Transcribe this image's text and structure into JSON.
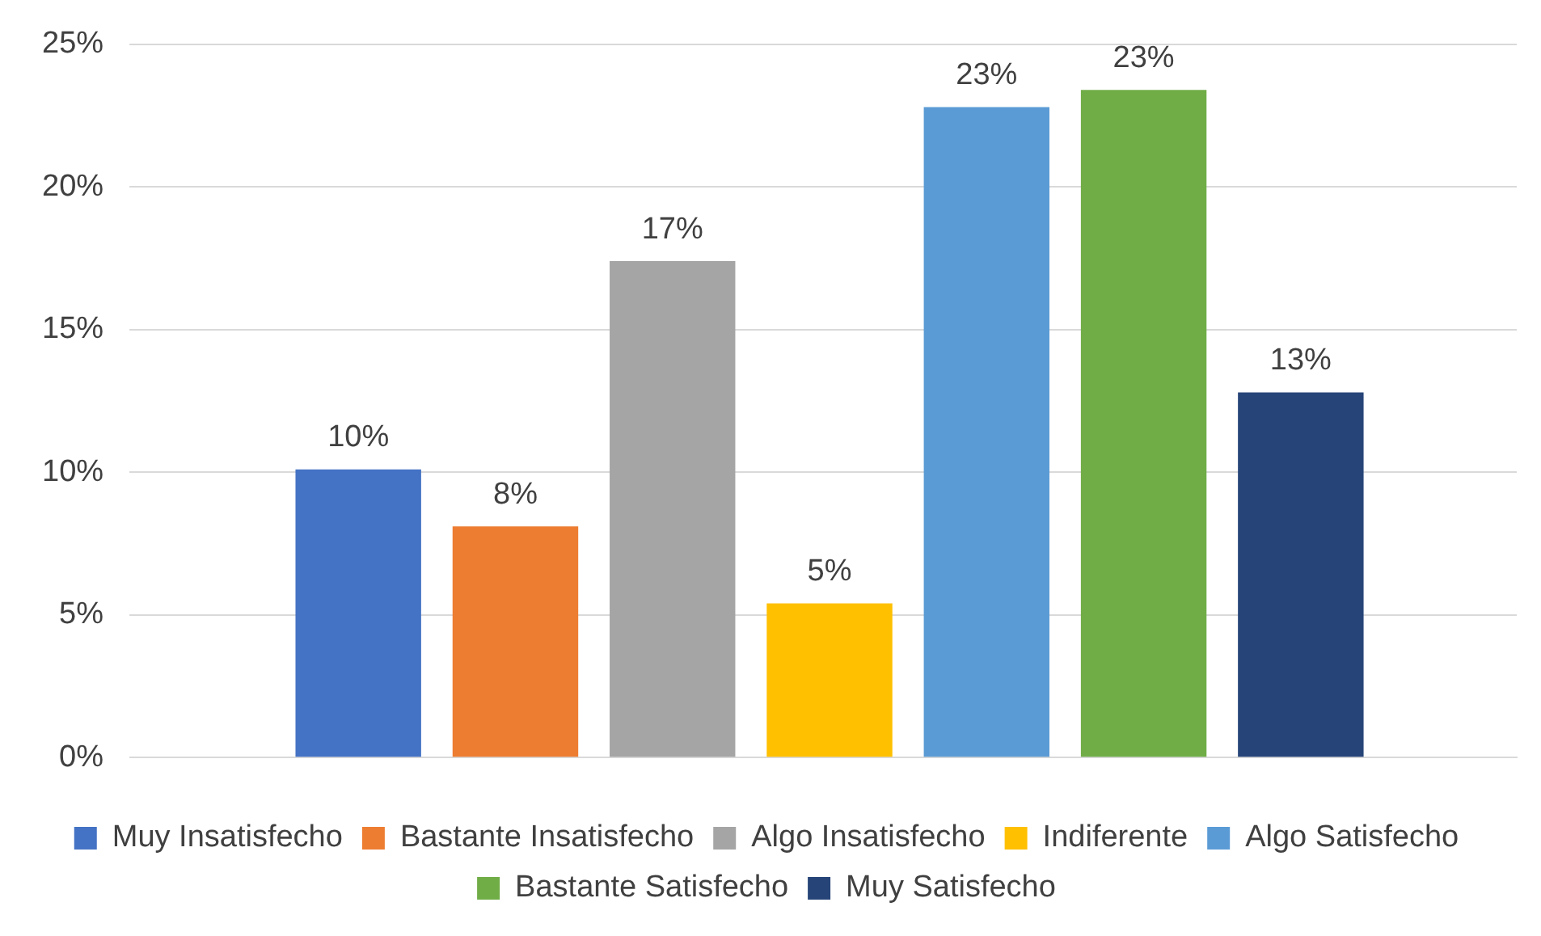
{
  "chart_data": {
    "type": "bar",
    "categories": [
      null
    ],
    "series": [
      {
        "name": "Muy Insatisfecho",
        "color": "#4472c4",
        "values": [
          10.1
        ],
        "value_labels": [
          "10%"
        ]
      },
      {
        "name": "Bastante Insatisfecho",
        "color": "#ed7d31",
        "values": [
          8.1
        ],
        "value_labels": [
          "8%"
        ]
      },
      {
        "name": "Algo Insatisfecho",
        "color": "#a5a5a5",
        "values": [
          17.4
        ],
        "value_labels": [
          "17%"
        ]
      },
      {
        "name": "Indiferente",
        "color": "#ffc000",
        "values": [
          5.4
        ],
        "value_labels": [
          "5%"
        ]
      },
      {
        "name": "Algo Satisfecho",
        "color": "#5b9bd5",
        "values": [
          22.8
        ],
        "value_labels": [
          "23%"
        ]
      },
      {
        "name": "Bastante Satisfecho",
        "color": "#70ad47",
        "values": [
          23.4
        ],
        "value_labels": [
          "23%"
        ]
      },
      {
        "name": "Muy Satisfecho",
        "color": "#264478",
        "values": [
          12.8
        ],
        "value_labels": [
          "13%"
        ]
      }
    ],
    "ylim": [
      0,
      25
    ],
    "yticks": [
      {
        "value": 0,
        "label": "0%"
      },
      {
        "value": 5,
        "label": "5%"
      },
      {
        "value": 10,
        "label": "10%"
      },
      {
        "value": 15,
        "label": "15%"
      },
      {
        "value": 20,
        "label": "20%"
      },
      {
        "value": 25,
        "label": "25%"
      }
    ],
    "grid": "y",
    "legend": "bottom"
  }
}
